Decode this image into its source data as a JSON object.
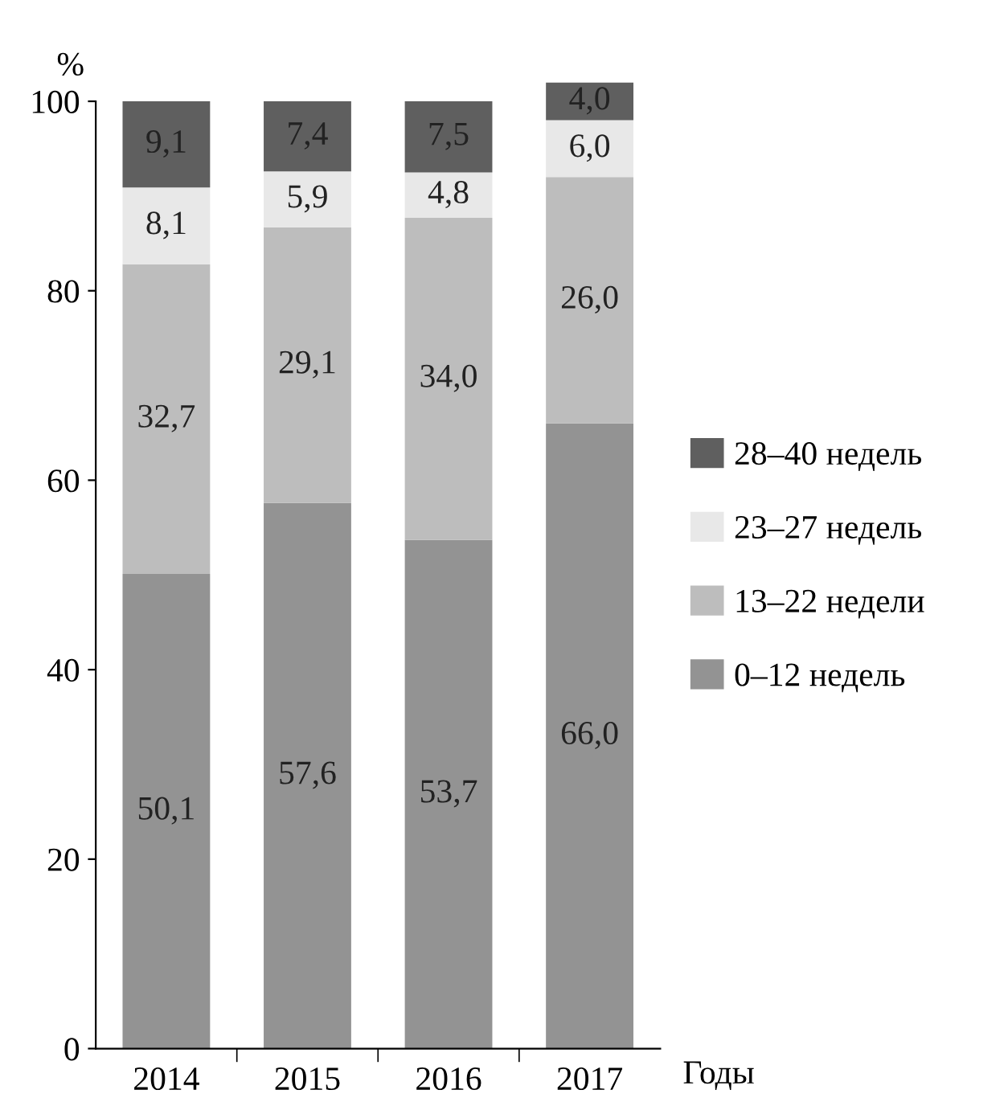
{
  "chart_data": {
    "type": "bar",
    "stacked": true,
    "ylabel": "%",
    "xlabel": "Годы",
    "categories": [
      "2014",
      "2015",
      "2016",
      "2017"
    ],
    "series": [
      {
        "name": "0–12 недель",
        "color": "#939393",
        "values": [
          50.1,
          57.6,
          53.7,
          66.0
        ],
        "value_labels": [
          "50,1",
          "57,6",
          "53,7",
          "66,0"
        ]
      },
      {
        "name": "13–22 недели",
        "color": "#bdbdbd",
        "values": [
          32.7,
          29.1,
          34.0,
          26.0
        ],
        "value_labels": [
          "32,7",
          "29,1",
          "34,0",
          "26,0"
        ]
      },
      {
        "name": "23–27 недель",
        "color": "#e8e8e8",
        "values": [
          8.1,
          5.9,
          4.8,
          6.0
        ],
        "value_labels": [
          "8,1",
          "5,9",
          "4,8",
          "6,0"
        ]
      },
      {
        "name": "28–40 недель",
        "color": "#5f5f5f",
        "values": [
          9.1,
          7.4,
          7.5,
          4.0
        ],
        "value_labels": [
          "9,1",
          "7,4",
          "7,5",
          "4,0"
        ]
      }
    ],
    "ylim": [
      0,
      102
    ],
    "yticks": [
      0,
      20,
      40,
      60,
      80,
      100
    ],
    "grid": false,
    "legend": "right"
  }
}
